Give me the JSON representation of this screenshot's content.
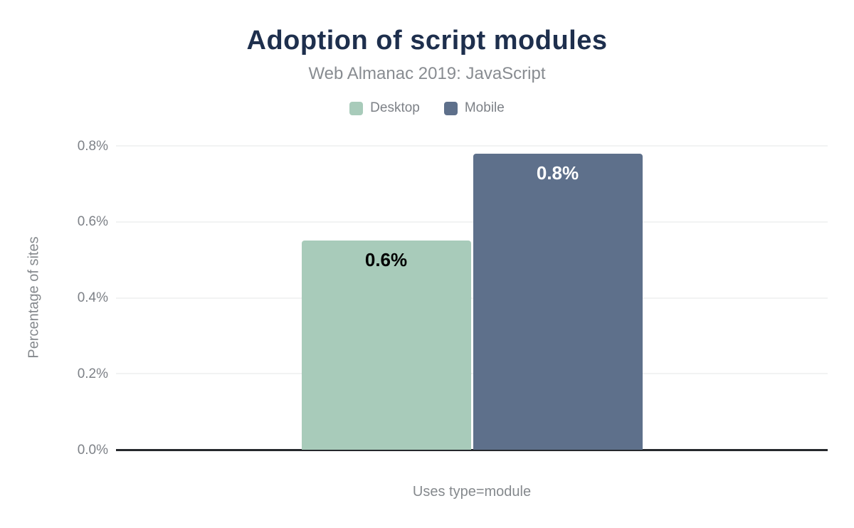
{
  "header": {
    "title": "Adoption of script modules",
    "subtitle": "Web Almanac 2019: JavaScript"
  },
  "chart_data": {
    "type": "bar",
    "title": "Adoption of script modules",
    "subtitle": "Web Almanac 2019: JavaScript",
    "categories": [
      "Uses type=module"
    ],
    "series": [
      {
        "name": "Desktop",
        "values": [
          0.55
        ],
        "display_labels": [
          "0.6%"
        ],
        "color": "#a8cbba",
        "label_color": "#000000"
      },
      {
        "name": "Mobile",
        "values": [
          0.78
        ],
        "display_labels": [
          "0.8%"
        ],
        "color": "#5e708b",
        "label_color": "#ffffff"
      }
    ],
    "xlabel": "Uses type=module",
    "ylabel": "Percentage of sites",
    "ylim": [
      0,
      0.8
    ],
    "yticks": [
      0,
      0.2,
      0.4,
      0.6,
      0.8
    ],
    "ytick_labels": [
      "0.0%",
      "0.2%",
      "0.4%",
      "0.6%",
      "0.8%"
    ],
    "grid": true,
    "legend_position": "top"
  },
  "colors": {
    "title": "#1e2f4d",
    "secondary_text": "#85898d",
    "gridline": "#f2f3f3",
    "axis_line": "#25282c",
    "background": "#ffffff"
  }
}
